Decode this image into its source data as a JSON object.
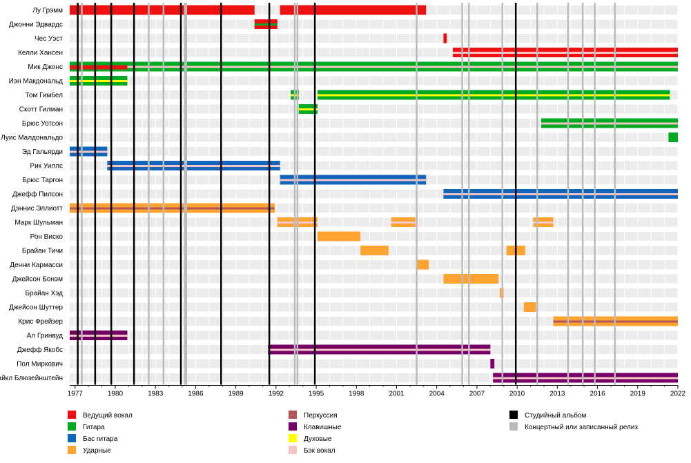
{
  "chart_data": {
    "type": "timeline",
    "x_range": [
      1976.6,
      2022.0
    ],
    "x_ticks": [
      "1977",
      "1980",
      "1983",
      "1986",
      "1989",
      "1992",
      "1995",
      "1998",
      "2001",
      "2004",
      "2007",
      "2010",
      "2013",
      "2016",
      "2019",
      "2022"
    ],
    "colors": {
      "vocal": "#ee1111",
      "guitar": "#00aa22",
      "bass": "#1166bb",
      "drums": "#ffa330",
      "perc": "#b25858",
      "keys": "#770066",
      "wind": "#ffff00",
      "backing": "#f4c6c6",
      "studio": "#000000",
      "live": "#bbbbbb"
    },
    "members": [
      {
        "name": "Лу Грэмм",
        "bars": [
          {
            "start": 1976.6,
            "end": 1990.4,
            "color": "vocal"
          },
          {
            "start": 1992.3,
            "end": 2003.2,
            "color": "vocal"
          }
        ]
      },
      {
        "name": "Джонни Эдвардс",
        "bars": [
          {
            "start": 1990.4,
            "end": 1992.1,
            "color": "vocal",
            "accent": "guitar"
          }
        ]
      },
      {
        "name": "Чес Уэст",
        "bars": [
          {
            "start": 2004.5,
            "end": 2004.75,
            "color": "vocal"
          }
        ]
      },
      {
        "name": "Келли Хансен",
        "bars": [
          {
            "start": 2005.2,
            "end": 2022.0,
            "color": "vocal",
            "accent": "backing"
          }
        ]
      },
      {
        "name": "Мик Джонс",
        "bars": [
          {
            "start": 1976.6,
            "end": 2022.0,
            "color": "guitar",
            "accent": "backing"
          },
          {
            "start": 1976.6,
            "end": 1980.9,
            "color": "vocal",
            "overlay": true
          }
        ]
      },
      {
        "name": "Иэн Макдональд",
        "bars": [
          {
            "start": 1976.6,
            "end": 1980.9,
            "color": "guitar",
            "accent": "wind"
          }
        ]
      },
      {
        "name": "Том Гимбел",
        "bars": [
          {
            "start": 1993.1,
            "end": 1993.7,
            "color": "guitar",
            "accent": "wind"
          },
          {
            "start": 1995.1,
            "end": 2021.4,
            "color": "guitar",
            "accent": "wind"
          }
        ]
      },
      {
        "name": "Скотт Гилман",
        "bars": [
          {
            "start": 1993.7,
            "end": 1995.1,
            "color": "guitar",
            "accent": "wind"
          }
        ]
      },
      {
        "name": "Брюс Уотсон",
        "bars": [
          {
            "start": 2011.8,
            "end": 2022.0,
            "color": "guitar",
            "accent": "backing"
          }
        ]
      },
      {
        "name": "Луис Малдональдо",
        "bars": [
          {
            "start": 2021.3,
            "end": 2022.0,
            "color": "guitar"
          }
        ]
      },
      {
        "name": "Эд Гальярди",
        "bars": [
          {
            "start": 1976.6,
            "end": 1979.4,
            "color": "bass",
            "accent": "backing"
          }
        ]
      },
      {
        "name": "Рик Уиллс",
        "bars": [
          {
            "start": 1979.4,
            "end": 1992.3,
            "color": "bass",
            "accent": "backing"
          }
        ]
      },
      {
        "name": "Брюс Таргон",
        "bars": [
          {
            "start": 1992.3,
            "end": 2003.2,
            "color": "bass",
            "accent": "backing"
          }
        ]
      },
      {
        "name": "Джефф Пилсон",
        "bars": [
          {
            "start": 2004.5,
            "end": 2022.0,
            "color": "bass",
            "accent": "backing"
          }
        ]
      },
      {
        "name": "Дэннис Эллиотт",
        "bars": [
          {
            "start": 1976.6,
            "end": 1991.9,
            "color": "drums",
            "accent": "perc"
          }
        ]
      },
      {
        "name": "Марк Шульман",
        "bars": [
          {
            "start": 1992.1,
            "end": 1995.1,
            "color": "drums",
            "accent": "backing"
          },
          {
            "start": 2000.6,
            "end": 2002.4,
            "color": "drums",
            "accent": "backing"
          },
          {
            "start": 2011.2,
            "end": 2012.7,
            "color": "drums",
            "accent": "backing"
          }
        ]
      },
      {
        "name": "Рон Виско",
        "bars": [
          {
            "start": 1995.1,
            "end": 1998.3,
            "color": "drums"
          }
        ]
      },
      {
        "name": "Брайан Тичи",
        "bars": [
          {
            "start": 1998.3,
            "end": 2000.4,
            "color": "drums"
          },
          {
            "start": 2009.2,
            "end": 2010.6,
            "color": "drums"
          }
        ]
      },
      {
        "name": "Денни Кармасси",
        "bars": [
          {
            "start": 2002.5,
            "end": 2003.4,
            "color": "drums"
          }
        ]
      },
      {
        "name": "Джейсон Бонэм",
        "bars": [
          {
            "start": 2004.5,
            "end": 2008.6,
            "color": "drums"
          }
        ]
      },
      {
        "name": "Брайан Хэд",
        "bars": [
          {
            "start": 2008.7,
            "end": 2009.0,
            "color": "drums"
          }
        ]
      },
      {
        "name": "Джейсон Шуттер",
        "bars": [
          {
            "start": 2010.5,
            "end": 2011.4,
            "color": "drums"
          }
        ]
      },
      {
        "name": "Крис Фрейзер",
        "bars": [
          {
            "start": 2012.7,
            "end": 2022.0,
            "color": "drums",
            "accent": "perc"
          }
        ]
      },
      {
        "name": "Ал Гринвуд",
        "bars": [
          {
            "start": 1976.6,
            "end": 1980.9,
            "color": "keys",
            "accent": "backing"
          }
        ]
      },
      {
        "name": "Джефф Якобс",
        "bars": [
          {
            "start": 1991.4,
            "end": 2008.0,
            "color": "keys",
            "accent": "backing"
          }
        ]
      },
      {
        "name": "Пол Миркович",
        "bars": [
          {
            "start": 2008.0,
            "end": 2008.3,
            "color": "keys"
          }
        ]
      },
      {
        "name": "Майкл Блюзейнштейн",
        "bars": [
          {
            "start": 2008.2,
            "end": 2022.0,
            "color": "keys",
            "accent": "backing"
          }
        ]
      }
    ],
    "studio_albums": [
      1977.2,
      1978.5,
      1979.7,
      1981.4,
      1984.9,
      1987.9,
      1991.5,
      1994.9,
      2009.9
    ],
    "live_releases": [
      1977.5,
      1982.5,
      1983.6,
      1985.2,
      1985.3,
      1993.4,
      1993.6,
      2002.5,
      2005.9,
      2006.4,
      2008.9,
      2011.5,
      2013.8,
      2014.9,
      2015.8,
      2017.3
    ],
    "legend": [
      {
        "key": "vocal",
        "label": "Ведущий вокал"
      },
      {
        "key": "guitar",
        "label": "Гитара"
      },
      {
        "key": "bass",
        "label": "Бас гитара"
      },
      {
        "key": "drums",
        "label": "Ударные"
      },
      {
        "key": "perc",
        "label": "Перкуссия"
      },
      {
        "key": "keys",
        "label": "Клавишные"
      },
      {
        "key": "wind",
        "label": "Духовые"
      },
      {
        "key": "backing",
        "label": "Бэк вокал"
      },
      {
        "key": "studio",
        "label": "Студийный альбом"
      },
      {
        "key": "live",
        "label": "Концертный или записанный релиз"
      }
    ]
  }
}
